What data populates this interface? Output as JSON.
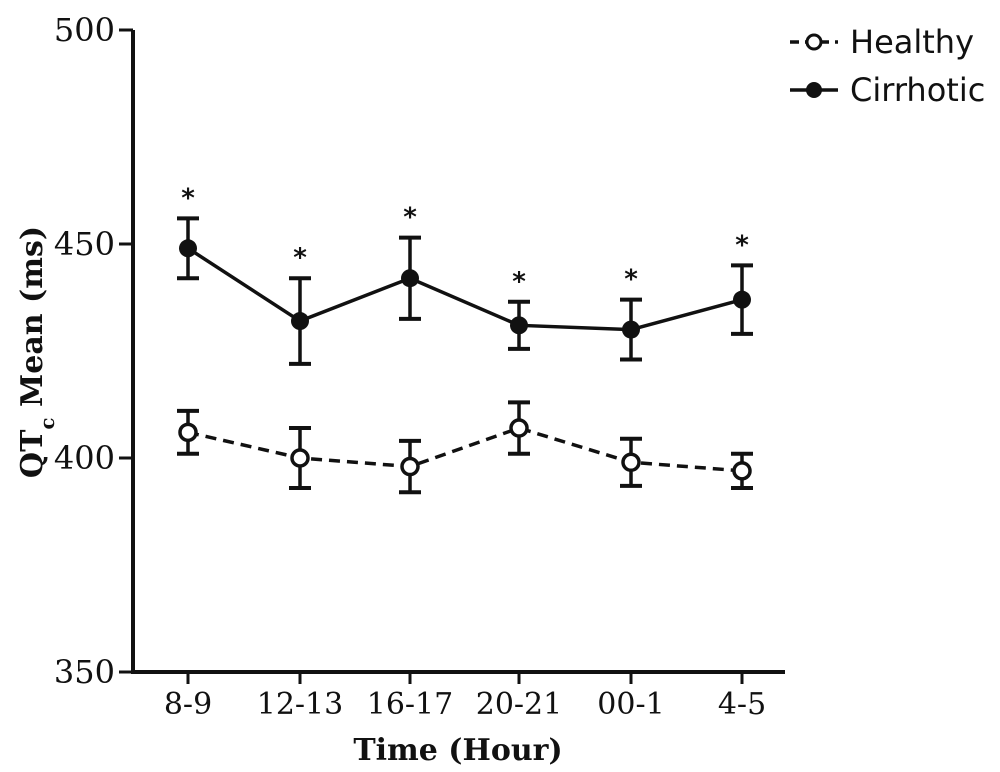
{
  "chart_data": {
    "type": "line",
    "xlabel": "Time (Hour)",
    "ylabel_main": "QT",
    "ylabel_sub": "c",
    "ylabel_rest": " Mean (ms)",
    "ylim": [
      350,
      500
    ],
    "yticks": [
      350,
      400,
      450,
      500
    ],
    "categories": [
      "8-9",
      "12-13",
      "16-17",
      "20-21",
      "00-1",
      "4-5"
    ],
    "legend_position": "top-right",
    "series": [
      {
        "name": "Healthy",
        "style": "dashed",
        "marker": "open-circle",
        "color": "#111111",
        "values": [
          406,
          400,
          398,
          407,
          399,
          397
        ],
        "error": [
          5,
          7,
          6,
          6,
          5.5,
          4
        ]
      },
      {
        "name": "Cirrhotic",
        "style": "solid",
        "marker": "filled-circle",
        "color": "#111111",
        "values": [
          449,
          432,
          442,
          431,
          430,
          437
        ],
        "error": [
          7,
          10,
          9.5,
          5.5,
          7,
          8
        ]
      }
    ],
    "significance_marker": "*",
    "significance_at": [
      "8-9",
      "12-13",
      "16-17",
      "20-21",
      "00-1",
      "4-5"
    ]
  }
}
